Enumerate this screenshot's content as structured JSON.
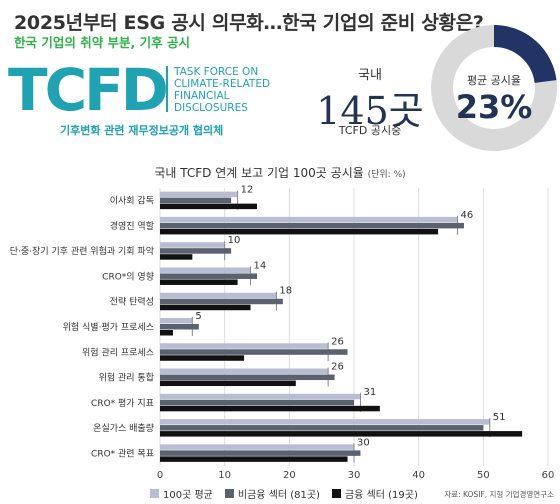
{
  "header": {
    "title": "2025년부터 ESG 공시 의무화…한국 기업의 준비 상황은?",
    "subtitle": "한국 기업의 취약 부분, 기후 공시"
  },
  "logo": {
    "wordmark": "TCFD",
    "lines": [
      "TASK FORCE ON",
      "CLIMATE-RELATED",
      "FINANCIAL",
      "DISCLOSURES"
    ],
    "caption": "기후변화 관련 재무정보공개 협의체"
  },
  "stat": {
    "label": "국내",
    "value": "145곳",
    "sub": "TCFD 공시중"
  },
  "donut": {
    "label": "평균 공시율",
    "value": "23%",
    "percent": 23,
    "fill_color": "#223366",
    "track_color": "#d9d9d9"
  },
  "chart_data": {
    "type": "bar",
    "orientation": "horizontal",
    "title": "국내 TCFD 연계 보고 기업 100곳 공시율",
    "unit": "(단위: %)",
    "categories": [
      "이사회 감독",
      "경영진 역할",
      "단·중·장기 기후 관련 위험과 기회 파악",
      "CRO*의 영향",
      "전략 탄력성",
      "위험 식별·평가 프로세스",
      "위험 관리 프로세스",
      "위험 관리 통합",
      "CRO* 평가 지표",
      "온실가스 배출량",
      "CRO* 관련 목표"
    ],
    "series": [
      {
        "name": "100곳 평균",
        "color": "#b8bdd2",
        "values": [
          12,
          46,
          10,
          14,
          18,
          5,
          26,
          26,
          31,
          51,
          30
        ]
      },
      {
        "name": "비금융 섹터 (81곳)",
        "color": "#5a6270",
        "values": [
          11,
          47,
          11,
          15,
          19,
          6,
          29,
          27,
          30,
          50,
          31
        ]
      },
      {
        "name": "금융 섹터 (19곳)",
        "color": "#111111",
        "values": [
          15,
          43,
          5,
          12,
          14,
          2,
          13,
          21,
          34,
          56,
          29
        ]
      }
    ],
    "data_labels_series": "100곳 평균",
    "xlim": [
      0,
      60
    ],
    "xticks": [
      0,
      10,
      20,
      30,
      40,
      50,
      60
    ],
    "grid": true,
    "legend": "bottom"
  },
  "source": "자료: KOSIF, 지형 기업경영연구소"
}
